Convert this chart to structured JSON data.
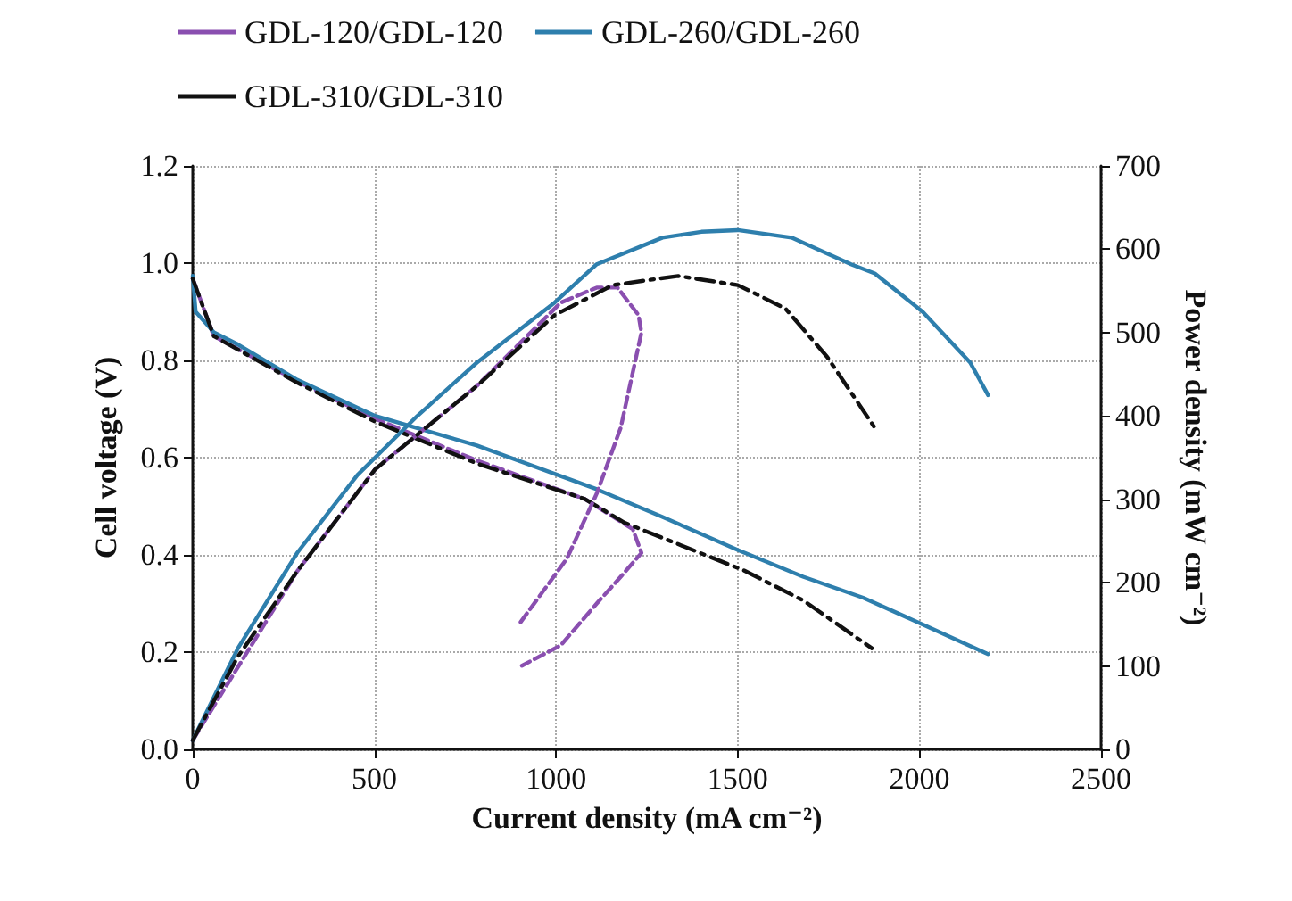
{
  "chart_data": {
    "type": "line",
    "xlabel": "Current density (mA cm⁻²)",
    "ylabel": "Cell voltage (V)",
    "y2label": "Power density (mW cm⁻²)",
    "xlim": [
      0,
      2500
    ],
    "xticks": [
      0,
      500,
      1000,
      1500,
      2000,
      2500
    ],
    "ylim": [
      0,
      1.2
    ],
    "yticks": [
      {
        "value": 0,
        "label": "0.0"
      },
      {
        "value": 0.2,
        "label": "0.2"
      },
      {
        "value": 0.4,
        "label": "0.4"
      },
      {
        "value": 0.6,
        "label": "0.6"
      },
      {
        "value": 0.8,
        "label": "0.8"
      },
      {
        "value": 1,
        "label": "1.0"
      },
      {
        "value": 1.2,
        "label": "1.2"
      }
    ],
    "y2lim": [
      0,
      700
    ],
    "y2ticks": [
      0,
      100,
      200,
      300,
      400,
      500,
      600,
      700
    ],
    "grid": true,
    "legend": "top",
    "marker": "none",
    "series": [
      {
        "name": "GDL-120/GDL-120",
        "color": "#8a4fb0",
        "line_style": "dashed",
        "x": [
          0,
          58,
          288,
          502,
          782,
          1079,
          1211,
          1235,
          1178,
          1112,
          1013,
          906
        ],
        "values": [
          0.968,
          0.85,
          0.757,
          0.68,
          0.594,
          0.515,
          0.453,
          0.404,
          0.355,
          0.3,
          0.214,
          0.172
        ]
      },
      {
        "name": "GDL-260/GDL-260",
        "color": "#2e7fad",
        "line_style": "solid",
        "x": [
          0,
          8,
          58,
          124,
          288,
          502,
          782,
          1112,
          1293,
          1500,
          1680,
          1845,
          2009,
          2189
        ],
        "values": [
          0.974,
          0.9,
          0.858,
          0.833,
          0.76,
          0.686,
          0.625,
          0.535,
          0.478,
          0.41,
          0.355,
          0.312,
          0.257,
          0.196
        ]
      },
      {
        "name": "GDL-310/GDL-310",
        "color": "#111111",
        "line_style": "dashdot",
        "x": [
          0,
          58,
          288,
          502,
          782,
          1079,
          1189,
          1353,
          1517,
          1681,
          1869
        ],
        "values": [
          0.968,
          0.85,
          0.754,
          0.674,
          0.588,
          0.515,
          0.466,
          0.417,
          0.368,
          0.306,
          0.208
        ]
      },
      {
        "color": "#8a4fb0",
        "line_style": "dashed",
        "axis": "y2",
        "x": [
          0,
          288,
          502,
          782,
          1013,
          1112,
          1169,
          1227,
          1235,
          1178,
          1112,
          1030,
          898
        ],
        "values": [
          11,
          214,
          336,
          436,
          536,
          554,
          554,
          521,
          500,
          386,
          307,
          229,
          150
        ]
      },
      {
        "color": "#2e7fad",
        "line_style": "solid",
        "axis": "y2",
        "x": [
          0,
          124,
          288,
          453,
          618,
          782,
          996,
          1112,
          1293,
          1400,
          1500,
          1648,
          1812,
          1877,
          2009,
          2140,
          2189
        ],
        "values": [
          11,
          121,
          236,
          329,
          400,
          464,
          536,
          582,
          614,
          621,
          623,
          614,
          582,
          571,
          525,
          464,
          425
        ]
      },
      {
        "color": "#111111",
        "line_style": "dashdot",
        "axis": "y2",
        "x": [
          0,
          124,
          288,
          502,
          782,
          996,
          1156,
          1336,
          1500,
          1631,
          1746,
          1877
        ],
        "values": [
          11,
          111,
          214,
          336,
          436,
          521,
          557,
          568,
          557,
          529,
          471,
          386
        ]
      }
    ]
  }
}
